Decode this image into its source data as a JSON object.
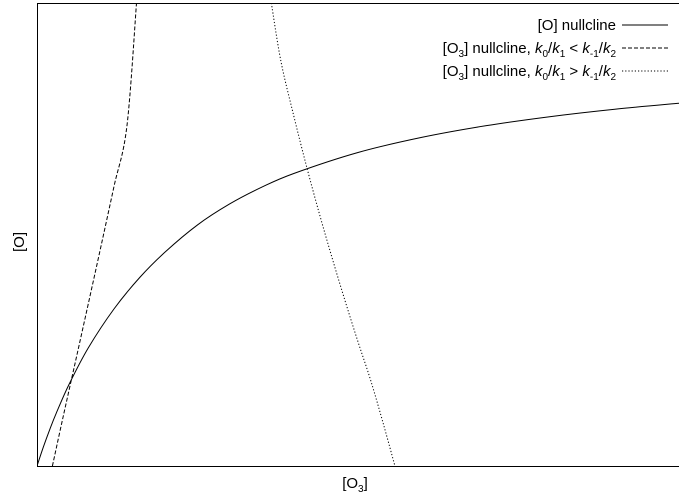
{
  "chart_data": {
    "type": "line",
    "xlabel": {
      "text": "[O",
      "subscript": "3",
      "suffix": "]"
    },
    "ylabel": "[O]",
    "xlim": [
      0,
      1
    ],
    "ylim": [
      0,
      1
    ],
    "ticks": false,
    "grid": false,
    "legend_position": "top-right",
    "series": [
      {
        "name": "[O] nullcline",
        "style": "solid",
        "x": [
          0,
          0.01,
          0.02,
          0.03,
          0.05,
          0.08,
          0.12,
          0.16,
          0.2,
          0.25,
          0.3,
          0.35,
          0.4,
          0.5,
          0.6,
          0.7,
          0.8,
          0.9,
          1.0
        ],
        "y": [
          0,
          0.0414,
          0.0793,
          0.1141,
          0.1765,
          0.2554,
          0.3394,
          0.4071,
          0.4627,
          0.5207,
          0.5659,
          0.6021,
          0.6318,
          0.6771,
          0.71,
          0.7351,
          0.7547,
          0.7706,
          0.7835
        ]
      },
      {
        "name": "[O3] nullcline, k0/k1 < k-1/k2",
        "style": "dashed",
        "x": [
          0.024,
          0.04,
          0.06,
          0.08,
          0.1,
          0.12,
          0.14,
          0.155
        ],
        "y": [
          0,
          0.1019,
          0.2262,
          0.351,
          0.4768,
          0.6042,
          0.7335,
          1.0
        ]
      },
      {
        "name": "[O3] nullcline, k0/k1 > k-1/k2",
        "style": "dotted",
        "x": [
          0.365,
          0.38,
          0.4,
          0.42,
          0.44,
          0.46,
          0.48,
          0.5,
          0.52,
          0.54,
          0.5575
        ],
        "y": [
          1.0,
          0.8738,
          0.7559,
          0.6463,
          0.544,
          0.4479,
          0.3561,
          0.2682,
          0.1839,
          0.0884,
          0
        ]
      }
    ]
  },
  "legend": [
    {
      "parts": [
        {
          "t": "[O] nullcline"
        }
      ]
    },
    {
      "parts": [
        {
          "t": "[O"
        },
        {
          "t": "3",
          "sub": true
        },
        {
          "t": "] nullcline, "
        },
        {
          "t": "k",
          "i": true
        },
        {
          "t": "0",
          "sub": true
        },
        {
          "t": "/"
        },
        {
          "t": "k",
          "i": true
        },
        {
          "t": "1",
          "sub": true
        },
        {
          "t": " < "
        },
        {
          "t": "k",
          "i": true
        },
        {
          "t": "-1",
          "sub": true
        },
        {
          "t": "/"
        },
        {
          "t": "k",
          "i": true
        },
        {
          "t": "2",
          "sub": true
        }
      ]
    },
    {
      "parts": [
        {
          "t": "[O"
        },
        {
          "t": "3",
          "sub": true
        },
        {
          "t": "] nullcline, "
        },
        {
          "t": "k",
          "i": true
        },
        {
          "t": "0",
          "sub": true
        },
        {
          "t": "/"
        },
        {
          "t": "k",
          "i": true
        },
        {
          "t": "1",
          "sub": true
        },
        {
          "t": " > "
        },
        {
          "t": "k",
          "i": true
        },
        {
          "t": "-1",
          "sub": true
        },
        {
          "t": "/"
        },
        {
          "t": "k",
          "i": true
        },
        {
          "t": "2",
          "sub": true
        }
      ]
    }
  ]
}
